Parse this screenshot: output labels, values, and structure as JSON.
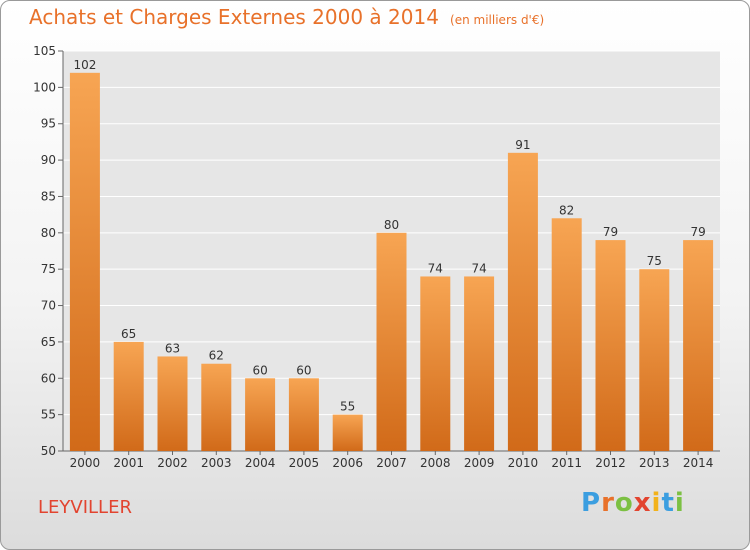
{
  "header": {
    "title": "Achats et Charges Externes 2000 à 2014",
    "unit": "(en milliers d'€)"
  },
  "footer": {
    "commune": "LEYVILLER",
    "logo": "Proxiti"
  },
  "colors": {
    "bar_light": "#f7a553",
    "bar_dark": "#d16a19",
    "title": "#e8712a",
    "commune": "#e2442f"
  },
  "chart_data": {
    "type": "bar",
    "categories": [
      "2000",
      "2001",
      "2002",
      "2003",
      "2004",
      "2005",
      "2006",
      "2007",
      "2008",
      "2009",
      "2010",
      "2011",
      "2012",
      "2013",
      "2014"
    ],
    "values": [
      102,
      65,
      63,
      62,
      60,
      60,
      55,
      80,
      74,
      74,
      91,
      82,
      79,
      75,
      79
    ],
    "ylim": [
      50,
      105
    ],
    "yticks": [
      50,
      55,
      60,
      65,
      70,
      75,
      80,
      85,
      90,
      95,
      100,
      105
    ],
    "grid": true
  }
}
